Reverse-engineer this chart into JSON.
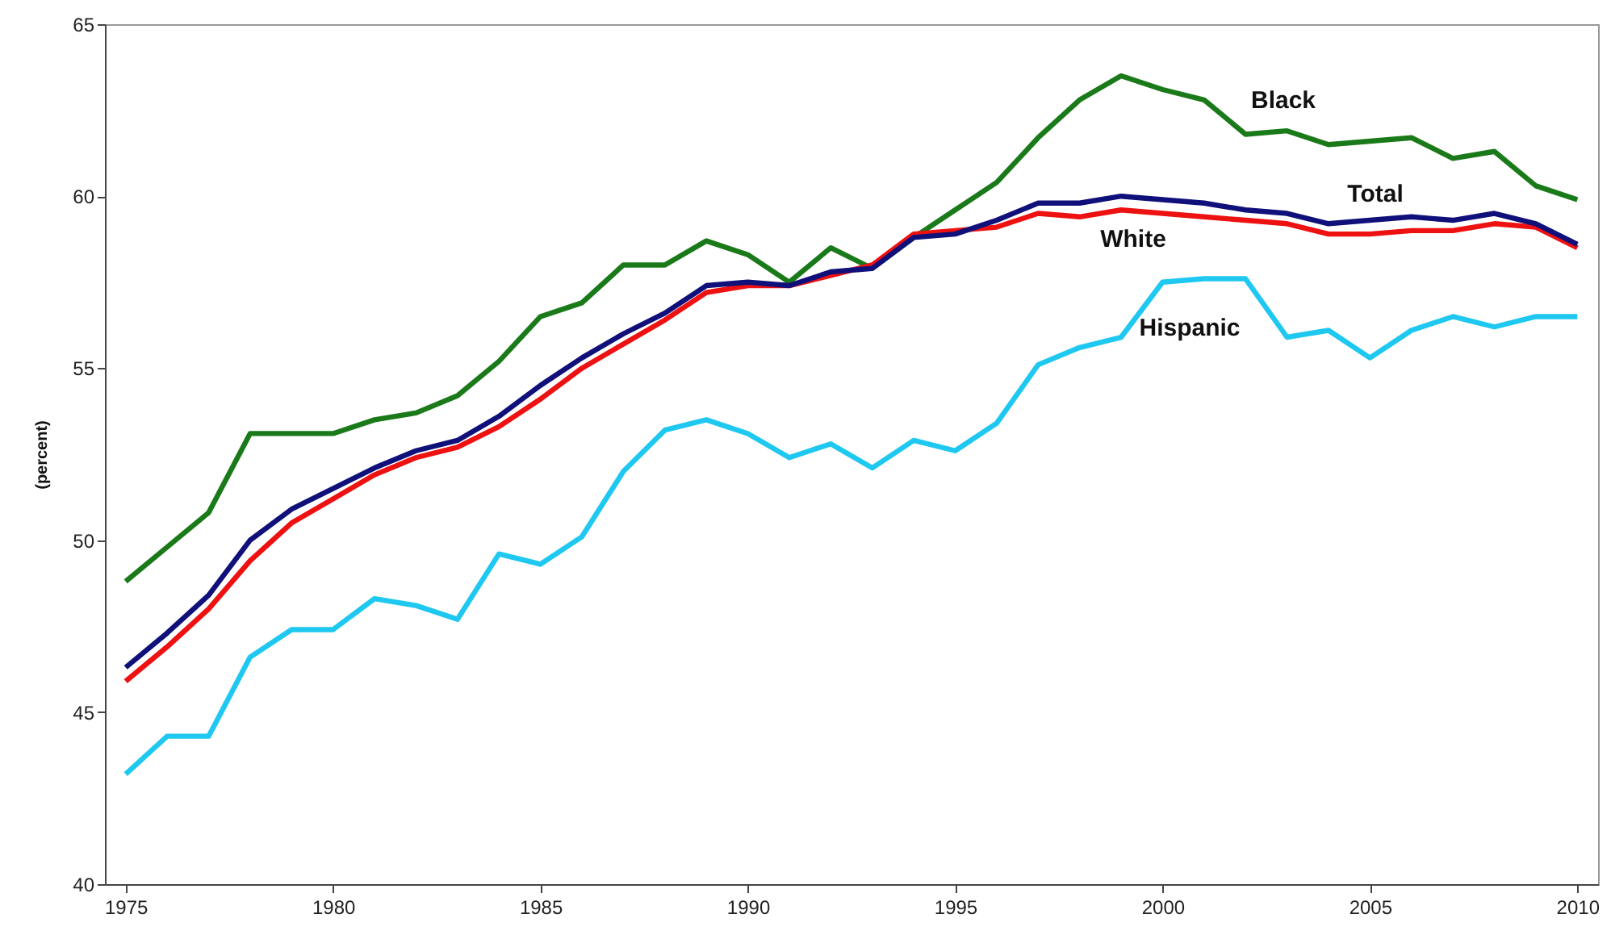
{
  "chart_data": {
    "type": "line",
    "ylabel": "(percent)",
    "x": [
      1975,
      1976,
      1977,
      1978,
      1979,
      1980,
      1981,
      1982,
      1983,
      1984,
      1985,
      1986,
      1987,
      1988,
      1989,
      1990,
      1991,
      1992,
      1993,
      1994,
      1995,
      1996,
      1997,
      1998,
      1999,
      2000,
      2001,
      2002,
      2003,
      2004,
      2005,
      2006,
      2007,
      2008,
      2009,
      2010
    ],
    "xlim": [
      1974.5,
      2010.5
    ],
    "xticks": [
      1975,
      1980,
      1985,
      1990,
      1995,
      2000,
      2005,
      2010
    ],
    "ylim": [
      40,
      65
    ],
    "yticks": [
      40,
      45,
      50,
      55,
      60,
      65
    ],
    "line_style": "solid",
    "series": [
      {
        "name": "Hispanic",
        "color": "#1ec8f0",
        "values": [
          43.2,
          44.3,
          44.3,
          46.6,
          47.4,
          47.4,
          48.3,
          48.1,
          47.7,
          49.6,
          49.3,
          50.1,
          52.0,
          53.2,
          53.5,
          53.1,
          52.4,
          52.8,
          52.1,
          52.9,
          52.6,
          53.4,
          55.1,
          55.6,
          55.9,
          57.5,
          57.6,
          57.6,
          55.9,
          56.1,
          55.3,
          56.1,
          56.5,
          56.2,
          56.5,
          56.5
        ]
      },
      {
        "name": "Black",
        "color": "#1a7a1a",
        "values": [
          48.8,
          49.8,
          50.8,
          53.1,
          53.1,
          53.1,
          53.5,
          53.7,
          54.2,
          55.2,
          56.5,
          56.9,
          58.0,
          58.0,
          58.7,
          58.3,
          57.5,
          58.5,
          57.9,
          58.8,
          59.6,
          60.4,
          61.7,
          62.8,
          63.5,
          63.1,
          62.8,
          61.8,
          61.9,
          61.5,
          61.6,
          61.7,
          61.1,
          61.3,
          60.3,
          59.9
        ]
      },
      {
        "name": "White",
        "color": "#ee1111",
        "values": [
          45.9,
          46.9,
          48.0,
          49.4,
          50.5,
          51.2,
          51.9,
          52.4,
          52.7,
          53.3,
          54.1,
          55.0,
          55.7,
          56.4,
          57.2,
          57.4,
          57.4,
          57.7,
          58.0,
          58.9,
          59.0,
          59.1,
          59.5,
          59.4,
          59.6,
          59.5,
          59.4,
          59.3,
          59.2,
          58.9,
          58.9,
          59.0,
          59.0,
          59.2,
          59.1,
          58.5
        ]
      },
      {
        "name": "Total",
        "color": "#10107a",
        "values": [
          46.3,
          47.3,
          48.4,
          50.0,
          50.9,
          51.5,
          52.1,
          52.6,
          52.9,
          53.6,
          54.5,
          55.3,
          56.0,
          56.6,
          57.4,
          57.5,
          57.4,
          57.8,
          57.9,
          58.8,
          58.9,
          59.3,
          59.8,
          59.8,
          60.0,
          59.9,
          59.8,
          59.6,
          59.5,
          59.2,
          59.3,
          59.4,
          59.3,
          59.5,
          59.2,
          58.6
        ]
      }
    ]
  }
}
